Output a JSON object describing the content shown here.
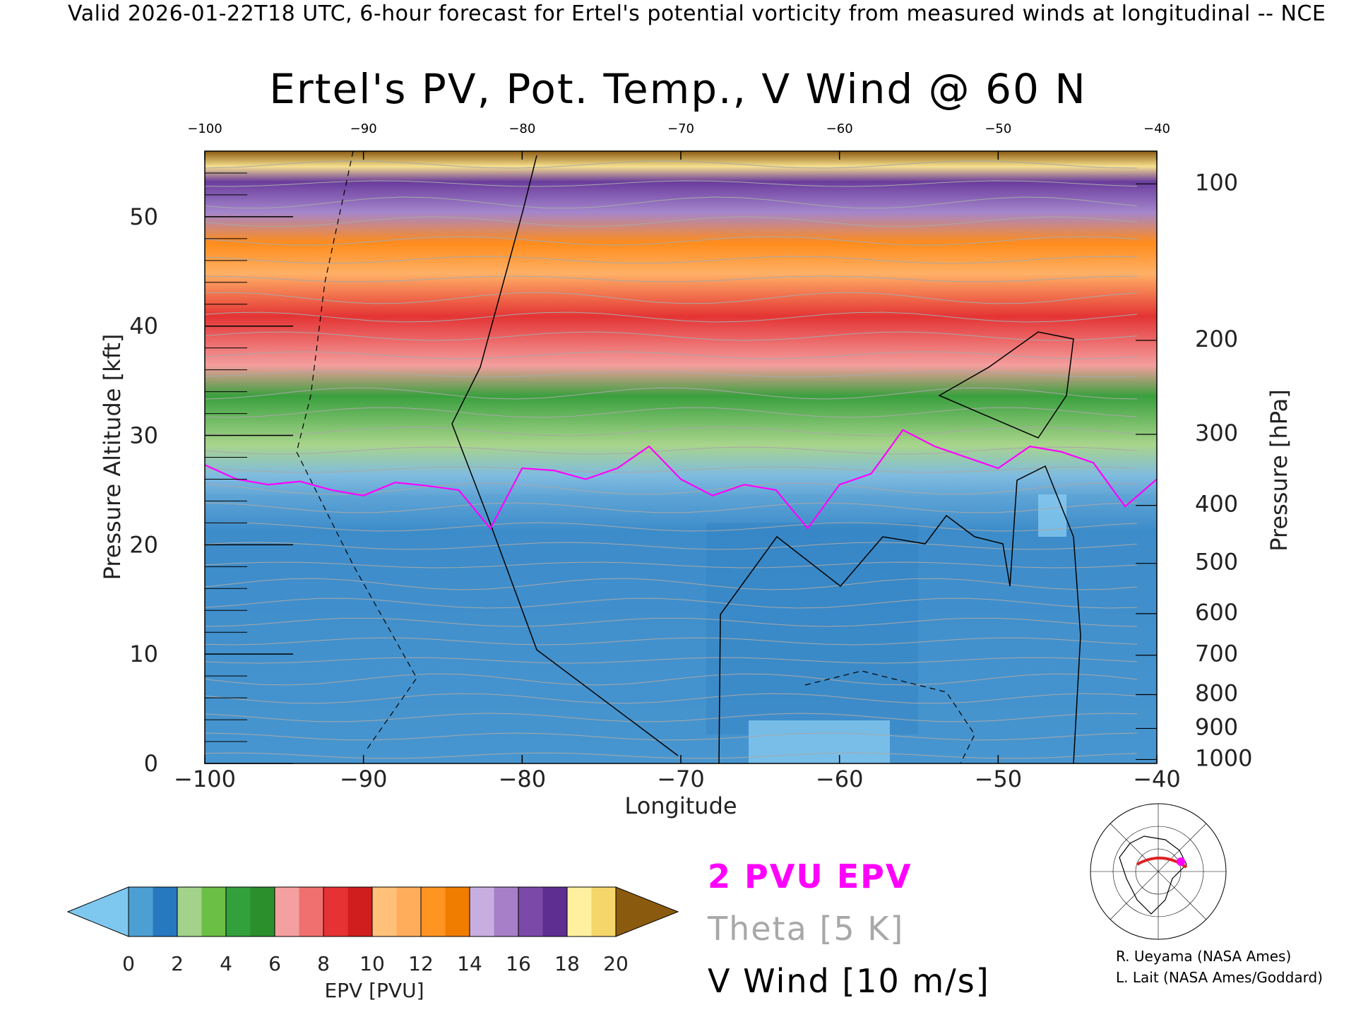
{
  "header": {
    "valid_line": "Valid 2026-01-22T18 UTC, 6-hour forecast for Ertel's potential vorticity from measured winds at longitudinal -- NCE"
  },
  "chart_data": {
    "type": "heatmap",
    "title": "Ertel's PV, Pot. Temp., V Wind @ 60 N",
    "xlabel": "Longitude",
    "ylabel_left": "Pressure Altitude [kft]",
    "ylabel_right": "Pressure [hPa]",
    "xlim": [
      -100,
      -40
    ],
    "ylim_kft": [
      0,
      56
    ],
    "x_ticks_bottom": [
      "−100",
      "−90",
      "−80",
      "−70",
      "−60",
      "−50",
      "−40"
    ],
    "x_ticks_top": [
      "−100",
      "−90",
      "−80",
      "−70",
      "−60",
      "−50",
      "−40"
    ],
    "y_ticks_left": [
      {
        "value": 0,
        "label": "0"
      },
      {
        "value": 10,
        "label": "10"
      },
      {
        "value": 20,
        "label": "20"
      },
      {
        "value": 30,
        "label": "30"
      },
      {
        "value": 40,
        "label": "40"
      },
      {
        "value": 50,
        "label": "50"
      }
    ],
    "y_ticks_right": [
      {
        "kft": 0.36,
        "label": "1000"
      },
      {
        "kft": 3.2,
        "label": "900"
      },
      {
        "kft": 6.3,
        "label": "800"
      },
      {
        "kft": 9.9,
        "label": "700"
      },
      {
        "kft": 13.7,
        "label": "600"
      },
      {
        "kft": 18.3,
        "label": "500"
      },
      {
        "kft": 23.6,
        "label": "400"
      },
      {
        "kft": 30.1,
        "label": "300"
      },
      {
        "kft": 38.7,
        "label": "200"
      },
      {
        "kft": 53.0,
        "label": "100"
      }
    ],
    "tropopause_2pvu": {
      "lon": [
        -100,
        -98,
        -96,
        -94,
        -92,
        -90,
        -88,
        -86,
        -84,
        -82,
        -80,
        -78,
        -76,
        -74,
        -72,
        -70,
        -68,
        -66,
        -64,
        -62,
        -60,
        -58,
        -56,
        -54,
        -52,
        -50,
        -48,
        -46,
        -44,
        -42,
        -40
      ],
      "kft": [
        27.3,
        26,
        25.5,
        25.8,
        25,
        24.5,
        25.7,
        25.4,
        25,
        21.5,
        27,
        26.8,
        26,
        27,
        29,
        26,
        24.5,
        25.5,
        25,
        21.5,
        25.5,
        26.5,
        30.5,
        29,
        28,
        27,
        29,
        28.5,
        27.5,
        23.5,
        26
      ]
    },
    "colorbar": {
      "label": "EPV [PVU]",
      "ticks": [
        "0",
        "2",
        "4",
        "6",
        "8",
        "10",
        "12",
        "14",
        "16",
        "18",
        "20"
      ],
      "under_color": "#7ec8f0",
      "over_color": "#8a5a0f",
      "colors": [
        "#4c9fd3",
        "#2678bf",
        "#a3d28a",
        "#6bbf45",
        "#33a13b",
        "#2b8f2b",
        "#f4a0a0",
        "#f06f6f",
        "#e63232",
        "#d01e1e",
        "#ffc07a",
        "#ffad5a",
        "#ff9422",
        "#f07c00",
        "#c8aee0",
        "#a67fc8",
        "#7b4aa8",
        "#5e2e91",
        "#fff0a0",
        "#f4d66b"
      ]
    }
  },
  "legend": {
    "pvu_label": "2 PVU EPV",
    "theta_label": "Theta [5 K]",
    "vwind_label": "V Wind [10 m/s]"
  },
  "colors": {
    "tropopause": "#ff00ff",
    "theta": "#a8a8a8",
    "vwind": "#000000"
  },
  "credits": {
    "line1": "R. Ueyama (NASA Ames)",
    "line2": "L. Lait (NASA Ames/Goddard)"
  }
}
